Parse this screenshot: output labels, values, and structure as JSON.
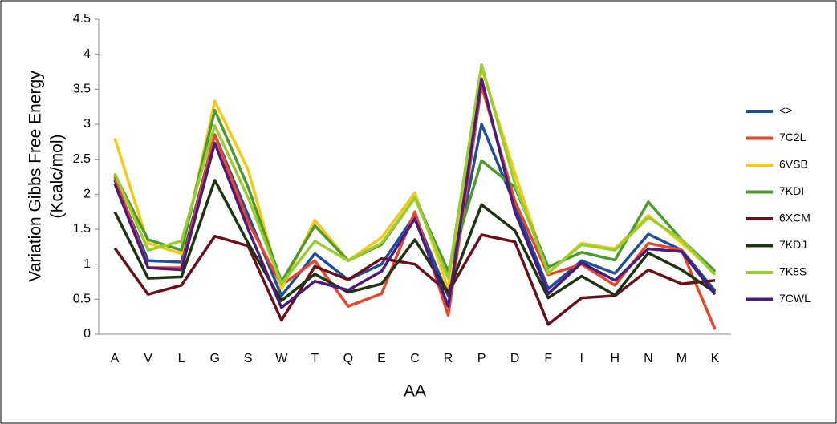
{
  "chart_data": {
    "type": "line",
    "y_label": [
      "Variation Gibbs Free Energy",
      "(Kcalc/mol)"
    ],
    "x_label": "AA",
    "categories": [
      "A",
      "V",
      "L",
      "G",
      "S",
      "W",
      "T",
      "Q",
      "E",
      "C",
      "R",
      "P",
      "D",
      "F",
      "I",
      "H",
      "N",
      "M",
      "K"
    ],
    "ylim": [
      0,
      4.5
    ],
    "yticks": [
      0,
      0.5,
      1,
      1.5,
      2,
      2.5,
      3,
      3.5,
      4,
      4.5
    ],
    "series": [
      {
        "name": "<>",
        "color": "#1f4e9a",
        "values": [
          2.2,
          1.05,
          1.03,
          2.85,
          1.7,
          0.55,
          1.15,
          0.78,
          1.0,
          1.7,
          0.55,
          3.0,
          1.85,
          0.65,
          1.05,
          0.87,
          1.43,
          1.2,
          0.62
        ]
      },
      {
        "name": "7C2L",
        "color": "#e8452a",
        "values": [
          2.25,
          0.95,
          0.95,
          2.85,
          1.6,
          0.7,
          1.05,
          0.4,
          0.58,
          1.75,
          0.27,
          3.55,
          1.9,
          0.85,
          1.0,
          0.7,
          1.3,
          1.2,
          0.07
        ]
      },
      {
        "name": "6VSB",
        "color": "#f6c915",
        "values": [
          2.8,
          1.3,
          1.15,
          3.33,
          2.35,
          0.65,
          1.63,
          1.05,
          1.38,
          2.02,
          0.65,
          3.8,
          2.3,
          0.87,
          1.3,
          1.22,
          1.7,
          1.3,
          0.88
        ]
      },
      {
        "name": "7KDI",
        "color": "#4a9a2e",
        "values": [
          2.28,
          1.35,
          1.2,
          3.2,
          2.1,
          0.75,
          1.55,
          1.05,
          1.28,
          1.95,
          0.9,
          2.48,
          2.1,
          0.96,
          1.17,
          1.06,
          1.89,
          1.35,
          0.9
        ]
      },
      {
        "name": "6XCM",
        "color": "#6b0f1a",
        "values": [
          1.23,
          0.57,
          0.7,
          1.4,
          1.26,
          0.2,
          0.97,
          0.78,
          1.08,
          1.0,
          0.6,
          1.42,
          1.32,
          0.14,
          0.52,
          0.55,
          0.92,
          0.72,
          0.77
        ]
      },
      {
        "name": "7KDJ",
        "color": "#1c3510",
        "values": [
          1.75,
          0.8,
          0.82,
          2.2,
          1.3,
          0.48,
          0.86,
          0.6,
          0.72,
          1.35,
          0.6,
          1.85,
          1.48,
          0.52,
          0.83,
          0.56,
          1.16,
          0.92,
          0.6
        ]
      },
      {
        "name": "7K8S",
        "color": "#9acd32",
        "values": [
          2.3,
          1.2,
          1.33,
          2.98,
          1.95,
          0.72,
          1.33,
          1.05,
          1.3,
          1.95,
          0.8,
          3.85,
          2.15,
          0.88,
          1.28,
          1.2,
          1.67,
          1.35,
          0.85
        ]
      },
      {
        "name": "7CWL",
        "color": "#4b1a7a",
        "values": [
          2.15,
          0.95,
          0.92,
          2.73,
          1.5,
          0.38,
          0.76,
          0.63,
          0.9,
          1.65,
          0.4,
          3.65,
          1.75,
          0.58,
          1.02,
          0.77,
          1.22,
          1.18,
          0.57
        ]
      }
    ]
  }
}
